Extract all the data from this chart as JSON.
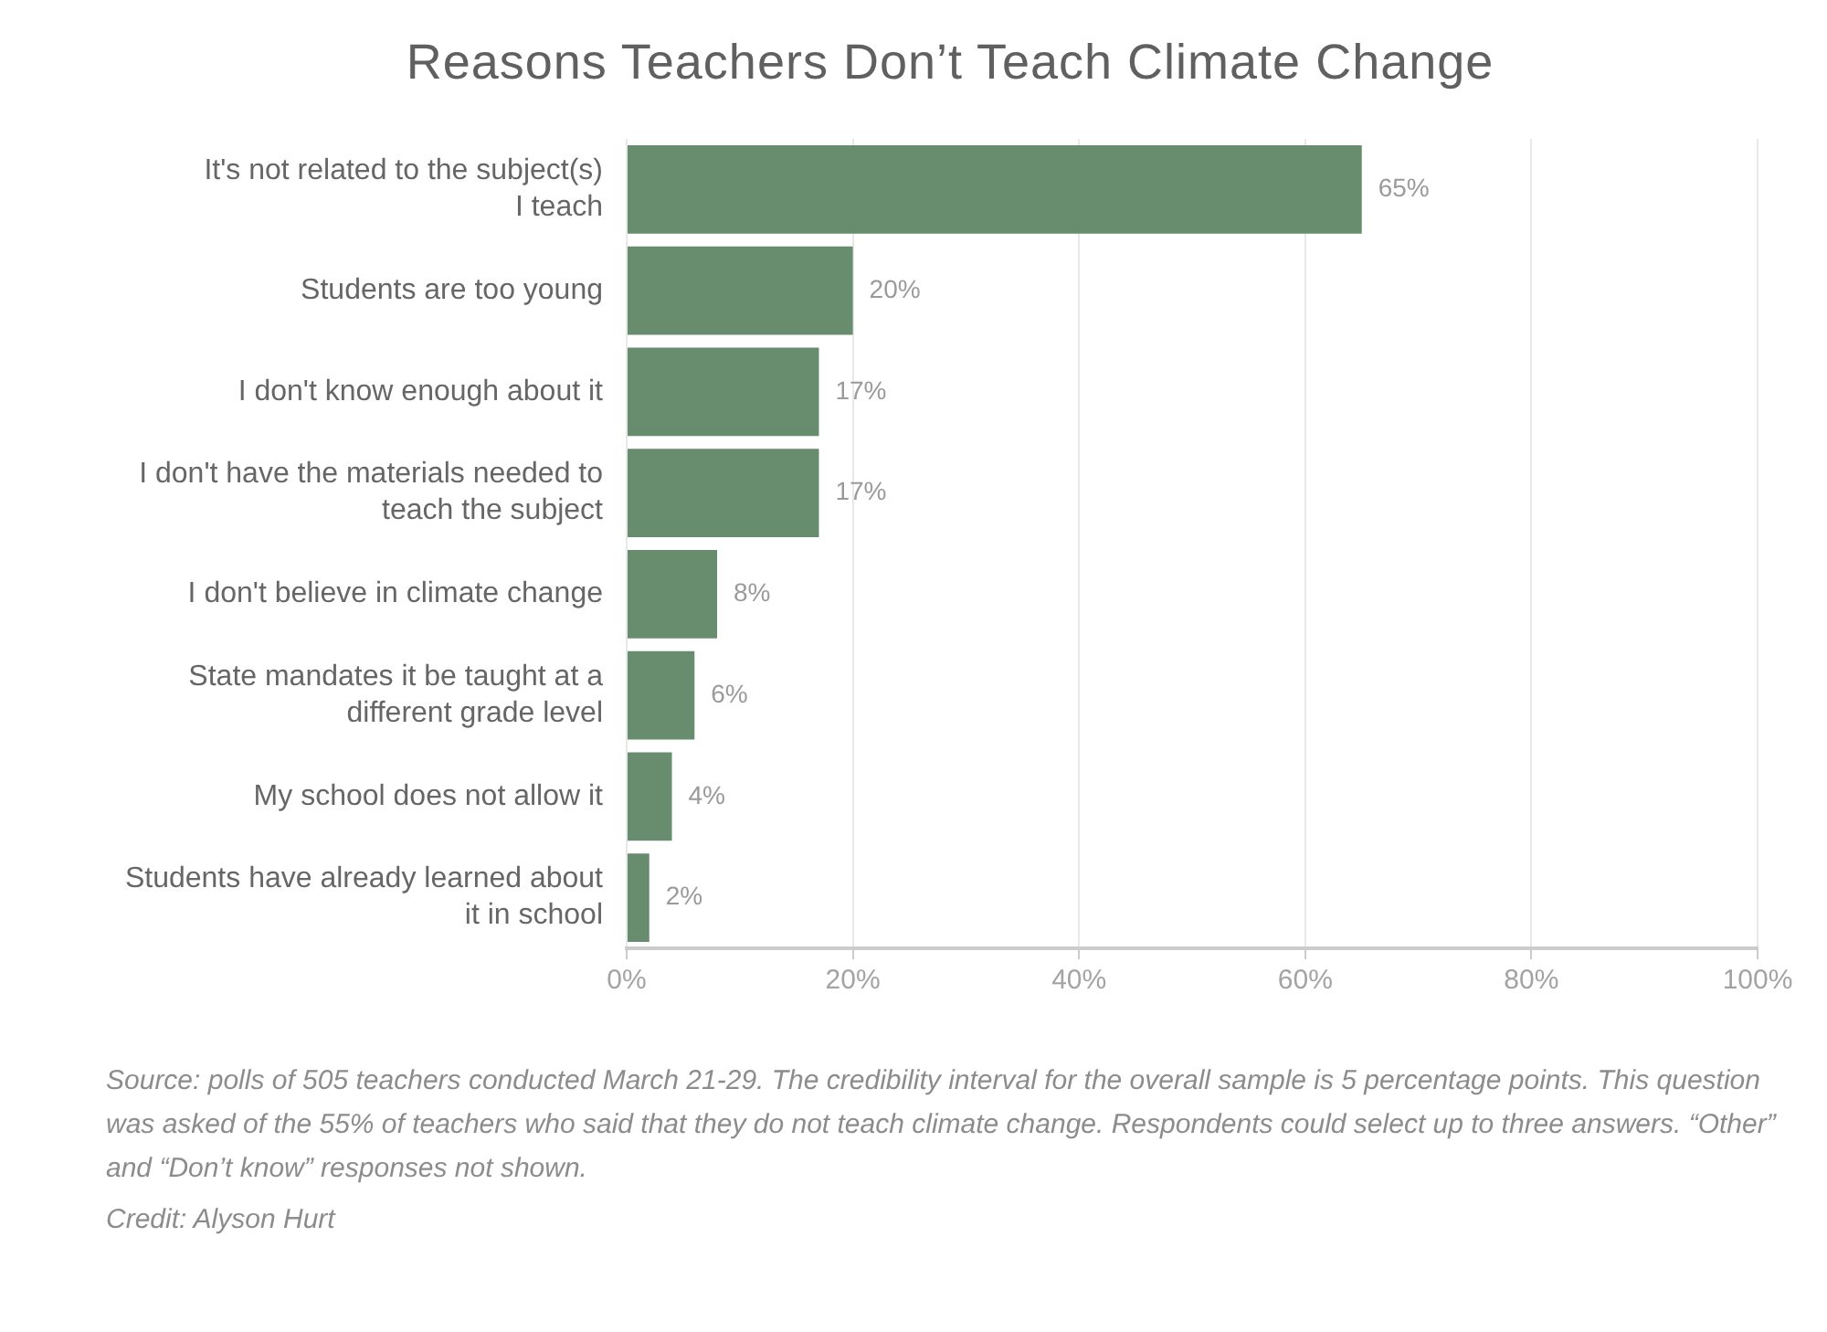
{
  "chart_data": {
    "type": "bar",
    "orientation": "horizontal",
    "title": "Reasons Teachers Don’t Teach Climate Change",
    "categories": [
      "It's not related to the subject(s) I teach",
      "Students are too young",
      "I don't know enough about it",
      "I don't have the materials needed to teach the subject",
      "I don't believe in climate change",
      "State mandates it be taught at a different grade level",
      "My school does not allow it",
      "Students have already learned about it in school"
    ],
    "values": [
      65,
      20,
      17,
      17,
      8,
      6,
      4,
      2
    ],
    "value_labels": [
      "65%",
      "20%",
      "17%",
      "17%",
      "8%",
      "6%",
      "4%",
      "2%"
    ],
    "color": "#678c6e",
    "xlim": [
      0,
      100
    ],
    "xticks": [
      {
        "value": 0,
        "label": "0%"
      },
      {
        "value": 20,
        "label": "20%"
      },
      {
        "value": 40,
        "label": "40%"
      },
      {
        "value": 60,
        "label": "60%"
      },
      {
        "value": 80,
        "label": "80%"
      },
      {
        "value": 100,
        "label": "100%"
      }
    ],
    "grid": "x",
    "annotations": [
      "Source: polls of 505 teachers conducted March 21-29. The credibility interval for the overall sample is 5 percentage points. This question was asked of the 55% of teachers who said that they do not teach climate change. Respondents could select up to three answers. “Other” and “Don’t know” responses not shown.",
      "Credit: Alyson Hurt"
    ]
  }
}
